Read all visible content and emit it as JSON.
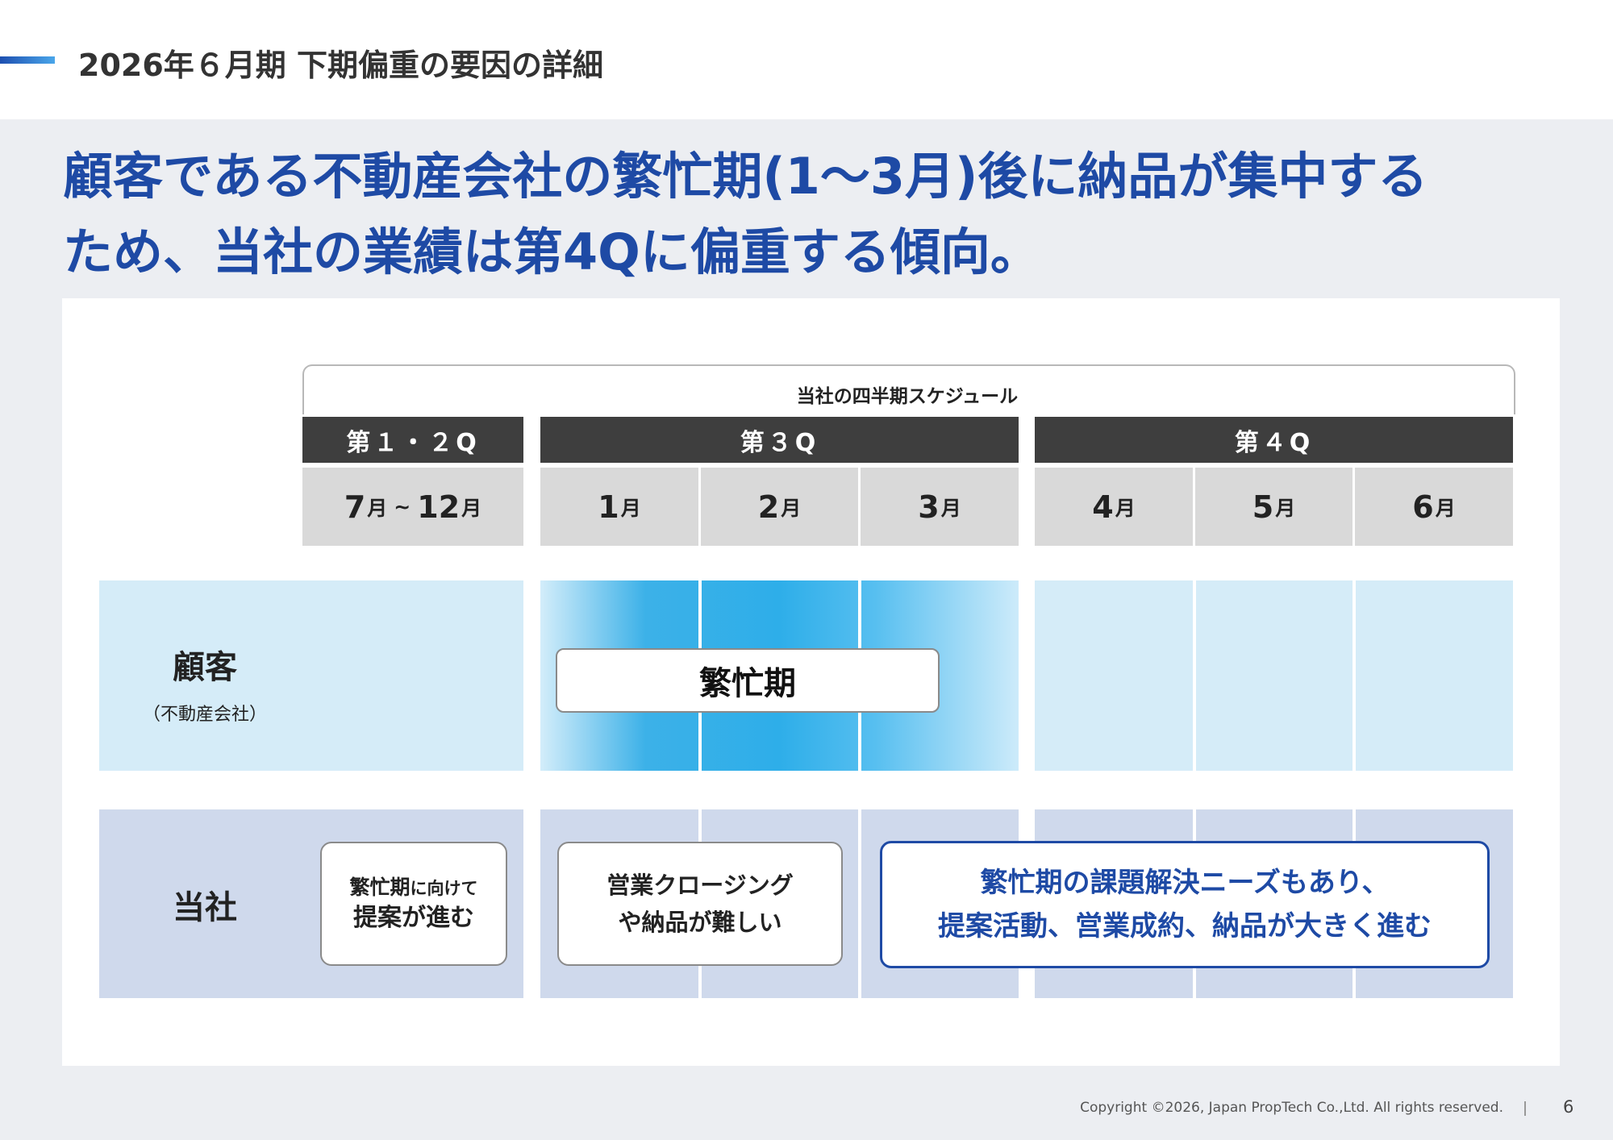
{
  "header": {
    "title": "2026年６月期 下期偏重の要因の詳細"
  },
  "headline": {
    "line1": "顧客である不動産会社の繁忙期(1〜3月)後に納品が集中する",
    "line2": "ため、当社の業績は第4Qに偏重する傾向。"
  },
  "schedule": {
    "title": "当社の四半期スケジュール",
    "quarters": [
      "第１・２Q",
      "第３Q",
      "第４Q"
    ],
    "months": {
      "first_half_start": "7",
      "first_half_tilde": "~",
      "first_half_end": "12",
      "unit": "月",
      "m1": "1",
      "m2": "2",
      "m3": "3",
      "m4": "4",
      "m5": "5",
      "m6": "6"
    }
  },
  "rows": {
    "customer": {
      "label": "顧客",
      "sub": "（不動産会社）",
      "busy": "繁忙期"
    },
    "company": {
      "label": "当社",
      "note1_line1a": "繁忙期",
      "note1_line1b": "に向けて",
      "note1_line2": "提案が進む",
      "note2_line1": "営業クロージング",
      "note2_line2": "や納品が難しい",
      "note3_line1": "繁忙期の課題解決ニーズもあり、",
      "note3_line2": "提案活動、営業成約、納品が大きく進む"
    }
  },
  "footer": {
    "copyright": "Copyright ©2026, Japan PropTech Co.,Ltd. All rights reserved.",
    "page": "6"
  },
  "colors": {
    "brand_blue": "#1e4aa5",
    "busy_blue": "#2eaee9",
    "customer_row": "#d5ecf8",
    "company_row": "#cfd9ec",
    "quarter_header": "#3e3e3e"
  }
}
